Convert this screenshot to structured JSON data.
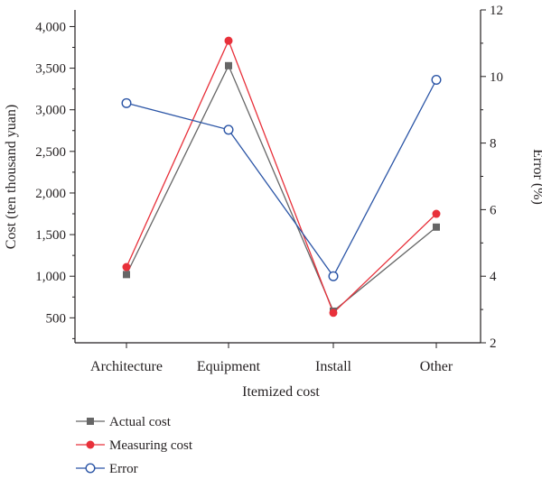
{
  "chart_data": {
    "type": "line",
    "categories": [
      "Architecture",
      "Equipment",
      "Install",
      "Other"
    ],
    "xlabel": "Itemized cost",
    "ylabel_left": "Cost (ten thousand yuan)",
    "ylabel_right": "Error (%)",
    "y_left": {
      "min": 200,
      "max": 4200,
      "ticks": [
        500,
        1000,
        1500,
        2000,
        2500,
        3000,
        3500,
        4000
      ],
      "tick_labels": [
        "500",
        "1,000",
        "1,500",
        "2,000",
        "2,500",
        "3,000",
        "3,500",
        "4,000"
      ]
    },
    "y_right": {
      "min": 2,
      "max": 12,
      "ticks": [
        2,
        4,
        6,
        8,
        10,
        12
      ],
      "tick_labels": [
        "2",
        "4",
        "6",
        "8",
        "10",
        "12"
      ]
    },
    "series": [
      {
        "name": "Actual cost",
        "axis": "left",
        "marker": "square",
        "color": "#666666",
        "markerColor": "#666666",
        "values": [
          1020,
          3530,
          580,
          1590
        ]
      },
      {
        "name": "Measuring cost",
        "axis": "left",
        "marker": "circle",
        "color": "#e8303a",
        "markerColor": "#e8303a",
        "values": [
          1110,
          3830,
          560,
          1750
        ]
      },
      {
        "name": "Error",
        "axis": "right",
        "marker": "open-circle",
        "color": "#2b55a6",
        "markerColor": "#2b55a6",
        "values": [
          9.2,
          8.4,
          4.0,
          9.9
        ]
      }
    ],
    "legend_position": "bottom-left"
  }
}
